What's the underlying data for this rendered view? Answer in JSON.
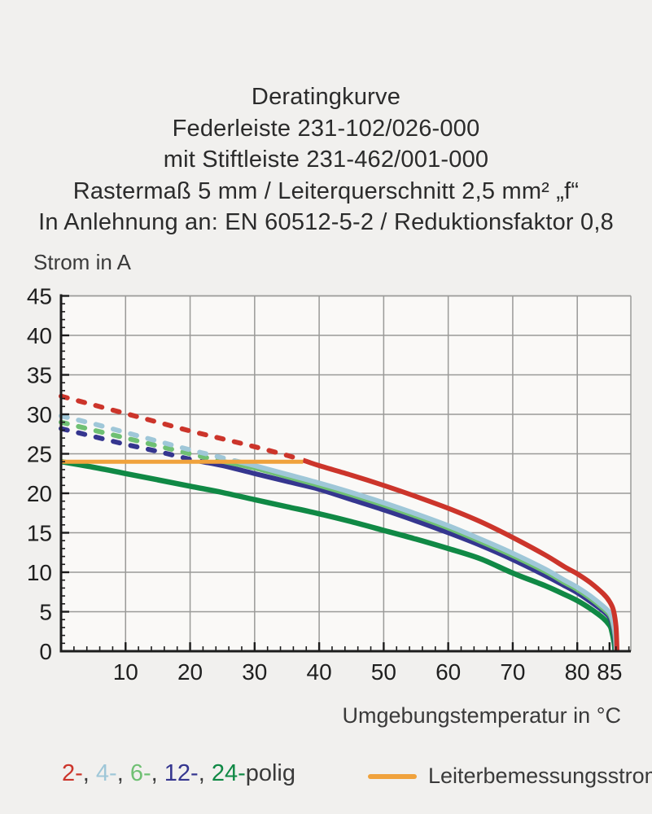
{
  "title": {
    "lines": [
      "Deratingkurve",
      "Federleiste 231-102/026-000",
      "mit Stiftleiste 231-462/001-000",
      "Rastermaß 5 mm / Leiterquerschnitt 2,5 mm² „f“",
      "In Anlehnung an: EN 60512-5-2 / Reduktionsfaktor 0,8"
    ]
  },
  "colors": {
    "page_bg": "#f1f0ee",
    "plot_bg": "#faf9f7",
    "grid": "#9a9a98",
    "axis": "#1c1c1c",
    "tick_label": "#1f1f1f",
    "text": "#3a3a3a",
    "pole2": "#cc352b",
    "pole4": "#9fc7d8",
    "pole6": "#6fc073",
    "pole12": "#35368f",
    "pole24": "#108945",
    "rated": "#f0a23c"
  },
  "chart_data": {
    "type": "line",
    "title": "Deratingkurve",
    "xlabel": "Umgebungstemperatur in °C",
    "ylabel": "Strom in A",
    "xlim": [
      0,
      88.3
    ],
    "ylim": [
      0,
      45
    ],
    "grid": true,
    "x_major_ticks": [
      10,
      20,
      30,
      40,
      50,
      60,
      70,
      80,
      85
    ],
    "x_gridlines": [
      10,
      20,
      30,
      40,
      50,
      60,
      70,
      80
    ],
    "x_minor_step": 2,
    "y_major_ticks": [
      0,
      5,
      10,
      15,
      20,
      25,
      30,
      35,
      40,
      45
    ],
    "y_gridlines": [
      5,
      10,
      15,
      20,
      25,
      30,
      35,
      40,
      45
    ],
    "y_minor_step": 1,
    "rated_current_line": {
      "label": "Leiterbemessungsstrom",
      "color_key": "rated",
      "value": 24,
      "x_range": [
        0,
        37.5
      ]
    },
    "series": [
      {
        "name": "24-polig",
        "color_key": "pole24",
        "width": 6.5,
        "segments": [
          {
            "style": "solid",
            "points": [
              [
                0,
                24.0
              ],
              [
                5,
                23.3
              ],
              [
                10,
                22.5
              ],
              [
                15,
                21.7
              ],
              [
                20,
                20.9
              ],
              [
                25,
                20.1
              ],
              [
                30,
                19.2
              ],
              [
                35,
                18.3
              ],
              [
                40,
                17.4
              ],
              [
                45,
                16.4
              ],
              [
                50,
                15.3
              ],
              [
                55,
                14.2
              ],
              [
                60,
                13.0
              ],
              [
                65,
                11.7
              ],
              [
                70,
                9.9
              ],
              [
                75,
                8.3
              ],
              [
                78,
                7.2
              ],
              [
                80,
                6.4
              ],
              [
                82,
                5.4
              ],
              [
                84,
                4.2
              ],
              [
                85,
                3.3
              ],
              [
                85.3,
                2.7
              ],
              [
                85.7,
                1.1
              ],
              [
                85.85,
                0
              ]
            ]
          }
        ]
      },
      {
        "name": "12-polig",
        "color_key": "pole12",
        "width": 6,
        "segments": [
          {
            "style": "dashed",
            "points": [
              [
                0,
                28.2
              ],
              [
                5,
                27.2
              ],
              [
                10,
                26.2
              ],
              [
                15,
                25.3
              ],
              [
                20,
                24.3
              ],
              [
                21.5,
                24.05
              ]
            ]
          },
          {
            "style": "solid",
            "points": [
              [
                21.5,
                24.05
              ],
              [
                25,
                23.5
              ],
              [
                30,
                22.5
              ],
              [
                35,
                21.5
              ],
              [
                40,
                20.5
              ],
              [
                45,
                19.2
              ],
              [
                50,
                17.9
              ],
              [
                55,
                16.5
              ],
              [
                60,
                15.0
              ],
              [
                65,
                13.4
              ],
              [
                70,
                11.6
              ],
              [
                75,
                9.6
              ],
              [
                78,
                8.3
              ],
              [
                80,
                7.4
              ],
              [
                82,
                6.3
              ],
              [
                84,
                5.1
              ],
              [
                85,
                4.3
              ],
              [
                85.4,
                3.4
              ],
              [
                85.8,
                1.7
              ],
              [
                85.95,
                0
              ]
            ]
          }
        ]
      },
      {
        "name": "6-polig",
        "color_key": "pole6",
        "width": 6,
        "segments": [
          {
            "style": "dashed",
            "points": [
              [
                0,
                29.0
              ],
              [
                5,
                28.0
              ],
              [
                10,
                27.0
              ],
              [
                15,
                26.0
              ],
              [
                20,
                25.0
              ],
              [
                25,
                24.05
              ]
            ]
          },
          {
            "style": "solid",
            "points": [
              [
                25,
                24.05
              ],
              [
                30,
                23.2
              ],
              [
                35,
                22.1
              ],
              [
                40,
                21.0
              ],
              [
                45,
                19.8
              ],
              [
                50,
                18.5
              ],
              [
                55,
                17.1
              ],
              [
                60,
                15.6
              ],
              [
                65,
                13.9
              ],
              [
                70,
                12.1
              ],
              [
                75,
                10.1
              ],
              [
                78,
                8.7
              ],
              [
                80,
                7.8
              ],
              [
                82,
                6.7
              ],
              [
                84,
                5.4
              ],
              [
                85,
                4.6
              ],
              [
                85.45,
                3.7
              ],
              [
                85.85,
                1.9
              ],
              [
                86,
                0
              ]
            ]
          }
        ]
      },
      {
        "name": "4-polig",
        "color_key": "pole4",
        "width": 6,
        "segments": [
          {
            "style": "dashed",
            "points": [
              [
                0,
                29.8
              ],
              [
                5,
                28.8
              ],
              [
                10,
                27.7
              ],
              [
                15,
                26.6
              ],
              [
                20,
                25.5
              ],
              [
                25,
                24.5
              ],
              [
                27,
                24.1
              ]
            ]
          },
          {
            "style": "solid",
            "points": [
              [
                27,
                24.1
              ],
              [
                30,
                23.5
              ],
              [
                35,
                22.4
              ],
              [
                40,
                21.3
              ],
              [
                45,
                20.1
              ],
              [
                50,
                18.8
              ],
              [
                55,
                17.4
              ],
              [
                60,
                15.9
              ],
              [
                65,
                14.2
              ],
              [
                70,
                12.4
              ],
              [
                75,
                10.4
              ],
              [
                78,
                9.0
              ],
              [
                80,
                8.1
              ],
              [
                82,
                7.0
              ],
              [
                84,
                5.7
              ],
              [
                85,
                4.9
              ],
              [
                85.5,
                3.9
              ],
              [
                85.9,
                2.1
              ],
              [
                86.05,
                0
              ]
            ]
          }
        ]
      },
      {
        "name": "2-polig",
        "color_key": "pole2",
        "width": 6,
        "segments": [
          {
            "style": "dashed",
            "points": [
              [
                0,
                32.3
              ],
              [
                5,
                31.2
              ],
              [
                10,
                30.1
              ],
              [
                15,
                29.0
              ],
              [
                20,
                27.9
              ],
              [
                25,
                26.9
              ],
              [
                30,
                25.9
              ],
              [
                35,
                24.8
              ],
              [
                37.5,
                24.2
              ]
            ]
          },
          {
            "style": "solid",
            "points": [
              [
                37.5,
                24.2
              ],
              [
                40,
                23.5
              ],
              [
                45,
                22.3
              ],
              [
                50,
                21.0
              ],
              [
                55,
                19.6
              ],
              [
                60,
                18.1
              ],
              [
                65,
                16.4
              ],
              [
                70,
                14.4
              ],
              [
                75,
                12.2
              ],
              [
                78,
                10.7
              ],
              [
                80,
                9.8
              ],
              [
                82,
                8.7
              ],
              [
                84,
                7.3
              ],
              [
                85,
                6.3
              ],
              [
                85.6,
                5.2
              ],
              [
                86,
                3.1
              ],
              [
                86.15,
                0
              ]
            ]
          }
        ]
      }
    ]
  },
  "legend": {
    "pole_tokens": [
      {
        "name": "legend-2-polig",
        "text": "2-",
        "color_key": "pole2"
      },
      {
        "name": "legend-separator",
        "text": ", ",
        "color_key": "text"
      },
      {
        "name": "legend-4-polig",
        "text": "4-",
        "color_key": "pole4"
      },
      {
        "name": "legend-separator",
        "text": ", ",
        "color_key": "text"
      },
      {
        "name": "legend-6-polig",
        "text": "6-",
        "color_key": "pole6"
      },
      {
        "name": "legend-separator",
        "text": ", ",
        "color_key": "text"
      },
      {
        "name": "legend-12-polig",
        "text": "12-",
        "color_key": "pole12"
      },
      {
        "name": "legend-separator",
        "text": ", ",
        "color_key": "text"
      },
      {
        "name": "legend-24-polig",
        "text": "24-",
        "color_key": "pole24"
      },
      {
        "name": "legend-polig-suffix",
        "text": "polig",
        "color_key": "text"
      }
    ],
    "rated_label": "Leiterbemessungsstrom"
  }
}
